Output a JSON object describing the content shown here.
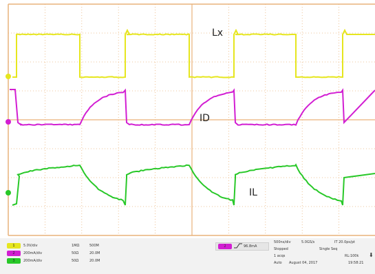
{
  "colors": {
    "ch1": "#e6e61e",
    "ch2": "#d21ed2",
    "ch3": "#28c828",
    "grid": "#e9b27a",
    "background": "#ffffff",
    "label_text": "#222222"
  },
  "trace_labels": {
    "lx": "Lx",
    "id": "ID",
    "il": "IL"
  },
  "channels": [
    {
      "badge": "1",
      "scale": "5.0V/div",
      "impedance": "1MΩ",
      "bandwidth": "500M"
    },
    {
      "badge": "2",
      "scale": "200mA/div",
      "impedance": "50Ω",
      "bandwidth": "20.0M"
    },
    {
      "badge": "3",
      "scale": "200mA/div",
      "impedance": "50Ω",
      "bandwidth": "20.0M"
    }
  ],
  "trigger": {
    "badge": "2",
    "slope_icon": "rising-edge-icon",
    "level": "96.8mA"
  },
  "acquisition": {
    "timebase": "500ns/div",
    "sample_rate": "5.0GS/s",
    "resolution": "IT 20.0ps/pt",
    "state": "Stopped",
    "mode": "Single Seq",
    "acqs": "1 acqs",
    "record_length": "RL:100k",
    "trigger_mode": "Auto",
    "date": "August 04, 2017",
    "time": "19:58:21"
  }
}
